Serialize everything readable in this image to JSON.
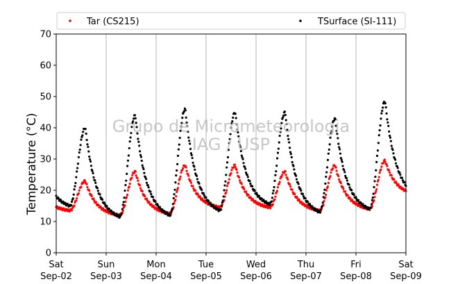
{
  "chart_data": {
    "type": "scatter",
    "title": "",
    "ylabel": "Temperature (°C)",
    "xlabel": "",
    "ylim": [
      0,
      70
    ],
    "yticks": [
      0,
      10,
      20,
      30,
      40,
      50,
      60,
      70
    ],
    "xlim": [
      "2017-09-02",
      "2017-09-09"
    ],
    "x_tick_labels": [
      {
        "day": "Sat",
        "date": "Sep-02"
      },
      {
        "day": "Sun",
        "date": "Sep-03"
      },
      {
        "day": "Mon",
        "date": "Sep-04"
      },
      {
        "day": "Tue",
        "date": "Sep-05"
      },
      {
        "day": "Wed",
        "date": "Sep-06"
      },
      {
        "day": "Thu",
        "date": "Sep-07"
      },
      {
        "day": "Fri",
        "date": "Sep-08"
      },
      {
        "day": "Sat",
        "date": "Sep-09"
      }
    ],
    "grid": "vertical",
    "legend_placement": "top",
    "watermark": [
      "Grupo de Micrometeorologia",
      "IAG / USP"
    ],
    "series": [
      {
        "name": "Tar (CS215)",
        "color": "#ff0000",
        "daily_min": [
          13.5,
          12.0,
          12.5,
          14.5,
          14.5,
          13.5,
          14.0,
          18.5
        ],
        "daily_max": [
          23.0,
          26.0,
          28.0,
          28.0,
          26.0,
          28.0,
          29.5
        ]
      },
      {
        "name": "TSurface (SI-111)",
        "color": "#000000",
        "daily_min": [
          15.0,
          11.5,
          12.0,
          13.5,
          15.5,
          13.0,
          14.0,
          18.0
        ],
        "daily_max": [
          40.0,
          44.0,
          46.0,
          45.0,
          45.0,
          43.0,
          48.5
        ]
      }
    ]
  }
}
